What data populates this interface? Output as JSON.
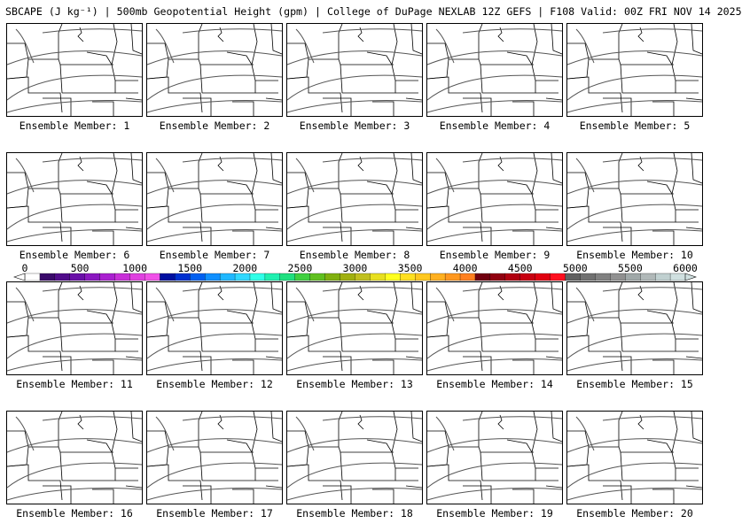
{
  "title": "SBCAPE (J kg⁻¹) | 500mb Geopotential Height (gpm) | College of DuPage NEXLAB 12Z GEFS | F108 Valid: 00Z FRI NOV 14 2025",
  "member_prefix": "Ensemble Member: ",
  "members": [
    1,
    2,
    3,
    4,
    5,
    6,
    7,
    8,
    9,
    10,
    11,
    12,
    13,
    14,
    15,
    16,
    17,
    18,
    19,
    20
  ],
  "colorbar": {
    "ticks": [
      "0",
      "500",
      "1000",
      "1500",
      "2000",
      "2500",
      "3000",
      "3500",
      "4000",
      "4500",
      "5000",
      "5500",
      "6000"
    ],
    "colors": [
      "#ffffff",
      "#3a0a6a",
      "#500c8a",
      "#6a10a8",
      "#8a18c0",
      "#aa20d0",
      "#c830d8",
      "#e040e0",
      "#f050e8",
      "#0010a0",
      "#0030d0",
      "#0060f0",
      "#1090ff",
      "#20b8ff",
      "#30d8ff",
      "#30ffe8",
      "#20f0b0",
      "#20e080",
      "#40d040",
      "#60c020",
      "#80b010",
      "#a0b010",
      "#c0c020",
      "#e8e020",
      "#ffff20",
      "#ffe020",
      "#ffc820",
      "#ffb020",
      "#ff9820",
      "#ff8020",
      "#700010",
      "#900010",
      "#b00010",
      "#c80010",
      "#e00010",
      "#ff1020",
      "#606060",
      "#707070",
      "#808080",
      "#909090",
      "#a0a8a8",
      "#b0b8b8",
      "#c0d0d0",
      "#d0e0e0"
    ]
  }
}
